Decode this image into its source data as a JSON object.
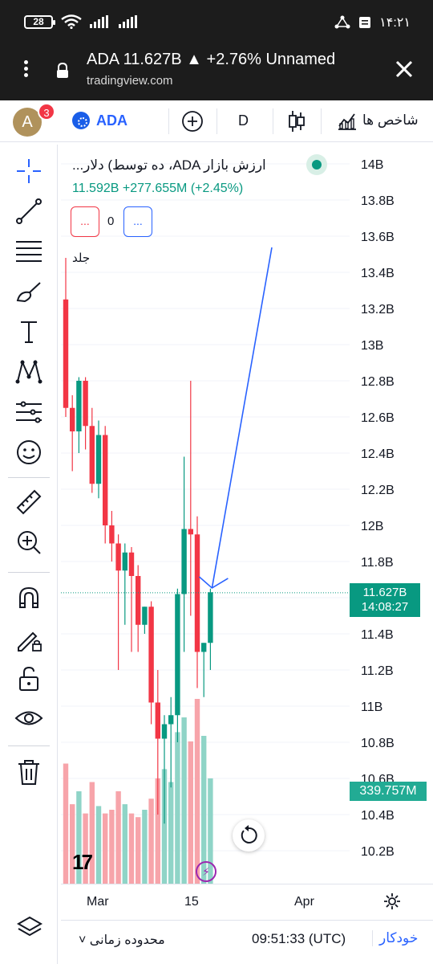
{
  "status_bar": {
    "battery": "28",
    "time": "۱۴:۲۱"
  },
  "browser": {
    "title": "ADA 11.627B ▲ +2.76% Unnamed",
    "url": "tradingview.com"
  },
  "toolbar": {
    "avatar_letter": "A",
    "notification_count": "3",
    "symbol": "ADA",
    "interval": "D",
    "indicators_label": "شاخص ها"
  },
  "legend": {
    "name": "...ده توسط) دلار ،ADA ارزش بازار",
    "price": "11.592B",
    "change": "+277.655M (+2.45%)",
    "indicator_count": "0",
    "more": "...",
    "volume_label": "جلد"
  },
  "price_axis": [
    "14B",
    "13.8B",
    "13.6B",
    "13.4B",
    "13.2B",
    "13B",
    "12.8B",
    "12.6B",
    "12.4B",
    "12.2B",
    "12B",
    "11.8B",
    "11.4B",
    "11.2B",
    "11B",
    "10.8B",
    "10.6B",
    "10.4B",
    "10.2B"
  ],
  "last_price": {
    "price": "11.627B",
    "countdown": "14:08:27"
  },
  "volume_tag": "339.757M",
  "x_axis": {
    "labels": [
      "Mar",
      "15",
      "Apr"
    ]
  },
  "bottom_bar": {
    "range": "محدوده زمانی",
    "time": "09:51:33 (UTC)",
    "auto": "خودکار"
  },
  "colors": {
    "up": "#089981",
    "down": "#f23645",
    "accent": "#2962ff"
  },
  "chart_data": {
    "type": "candlestick",
    "candles": [
      {
        "o": 13.25,
        "h": 13.48,
        "c": 12.65,
        "l": 12.6
      },
      {
        "o": 12.65,
        "h": 12.72,
        "c": 12.52,
        "l": 12.3
      },
      {
        "o": 12.52,
        "h": 12.82,
        "c": 12.8,
        "l": 12.4
      },
      {
        "o": 12.8,
        "h": 12.82,
        "c": 12.55,
        "l": 12.42
      },
      {
        "o": 12.55,
        "h": 12.65,
        "c": 12.23,
        "l": 12.18
      },
      {
        "o": 12.23,
        "h": 12.58,
        "c": 12.5,
        "l": 12.15
      },
      {
        "o": 12.5,
        "h": 12.55,
        "c": 12.0,
        "l": 11.9
      },
      {
        "o": 12.0,
        "h": 12.08,
        "c": 11.9,
        "l": 11.8
      },
      {
        "o": 11.9,
        "h": 11.95,
        "c": 11.75,
        "l": 11.2
      },
      {
        "o": 11.75,
        "h": 11.9,
        "c": 11.85,
        "l": 11.45
      },
      {
        "o": 11.85,
        "h": 11.88,
        "c": 11.72,
        "l": 11.3
      },
      {
        "o": 11.72,
        "h": 11.78,
        "c": 11.45,
        "l": 11.3
      },
      {
        "o": 11.45,
        "h": 11.55,
        "c": 11.55,
        "l": 11.4
      },
      {
        "o": 11.55,
        "h": 11.58,
        "c": 11.02,
        "l": 10.9
      },
      {
        "o": 11.02,
        "h": 11.2,
        "c": 10.82,
        "l": 10.4
      },
      {
        "o": 10.82,
        "h": 10.95,
        "c": 10.9,
        "l": 10.35
      },
      {
        "o": 10.9,
        "h": 11.05,
        "c": 10.95,
        "l": 10.55
      },
      {
        "o": 10.95,
        "h": 11.65,
        "c": 11.62,
        "l": 10.8
      },
      {
        "o": 11.62,
        "h": 12.38,
        "c": 11.98,
        "l": 11.3
      },
      {
        "o": 11.98,
        "h": 12.8,
        "c": 11.95,
        "l": 11.5
      },
      {
        "o": 11.95,
        "h": 12.05,
        "c": 11.3,
        "l": 11.1
      },
      {
        "o": 11.3,
        "h": 11.35,
        "c": 11.35,
        "l": 11.05
      },
      {
        "o": 11.35,
        "h": 11.65,
        "c": 11.63,
        "l": 11.2
      }
    ],
    "volume_relative": [
      0.65,
      0.43,
      0.5,
      0.38,
      0.55,
      0.42,
      0.38,
      0.4,
      0.5,
      0.43,
      0.38,
      0.36,
      0.4,
      0.46,
      0.57,
      0.62,
      0.55,
      0.82,
      0.9,
      0.77,
      1.0,
      0.8,
      0.57
    ],
    "volume_up": [
      false,
      false,
      true,
      false,
      false,
      true,
      false,
      false,
      false,
      true,
      false,
      false,
      true,
      false,
      false,
      true,
      true,
      true,
      true,
      false,
      false,
      true,
      true
    ],
    "ylim": [
      10.1,
      14.1
    ]
  }
}
